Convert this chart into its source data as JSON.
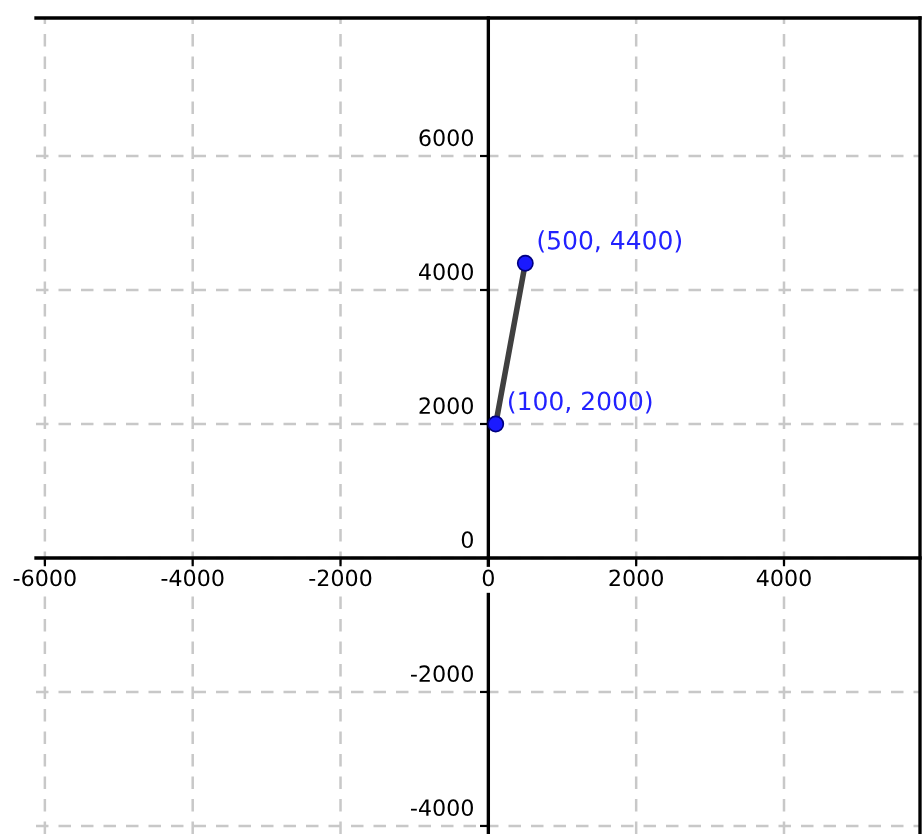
{
  "chart_data": {
    "type": "line",
    "x": [
      100,
      500
    ],
    "series": [
      {
        "color": "#404040",
        "values": [
          2000,
          4400
        ],
        "marker": "none"
      },
      {
        "type": "scatter",
        "color": "#1a1aff",
        "values": [
          2000,
          4400
        ],
        "marker": "circle"
      }
    ],
    "annotations": [
      {
        "text": "(100, 2000)",
        "x": 100,
        "y": 2000
      },
      {
        "text": "(500, 4400)",
        "x": 500,
        "y": 4400
      }
    ],
    "xlim": [
      -6120,
      5840
    ],
    "ylim": [
      -4120,
      8060
    ],
    "xticks": [
      -6000,
      -4000,
      -2000,
      0,
      2000,
      4000
    ],
    "yticks": [
      -4000,
      -2000,
      0,
      2000,
      4000,
      6000
    ],
    "grid": true
  }
}
